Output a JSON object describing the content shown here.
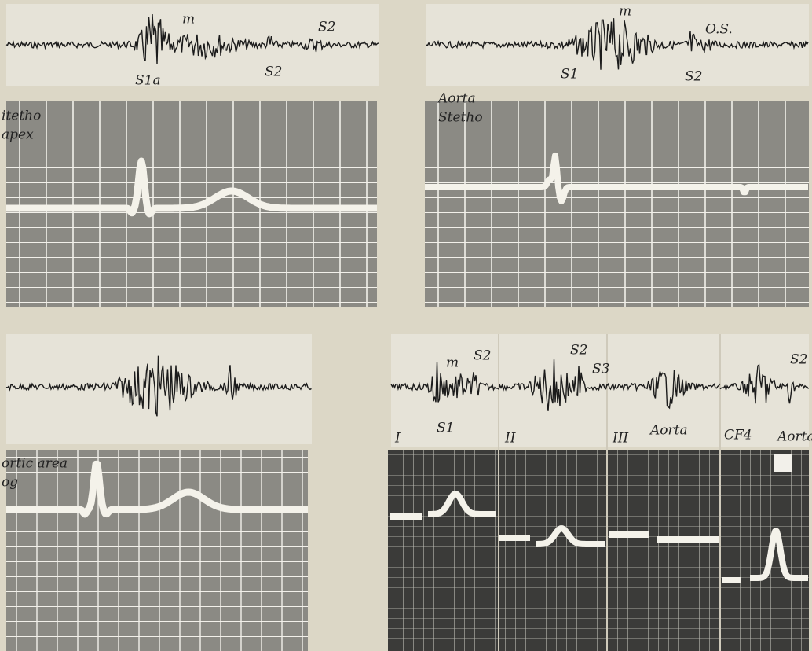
{
  "annotations": [
    "m",
    "S2",
    "S2",
    "S1a",
    "itetho",
    "apex",
    "m",
    "O.S.",
    "S1",
    "S2",
    "Aorta",
    "Stetho",
    "ortic area",
    "og",
    "I",
    "m",
    "S2",
    "S1",
    "II",
    "S2",
    "S3",
    "III",
    "Aorta",
    "CF4",
    "S2",
    "Aorta"
  ]
}
